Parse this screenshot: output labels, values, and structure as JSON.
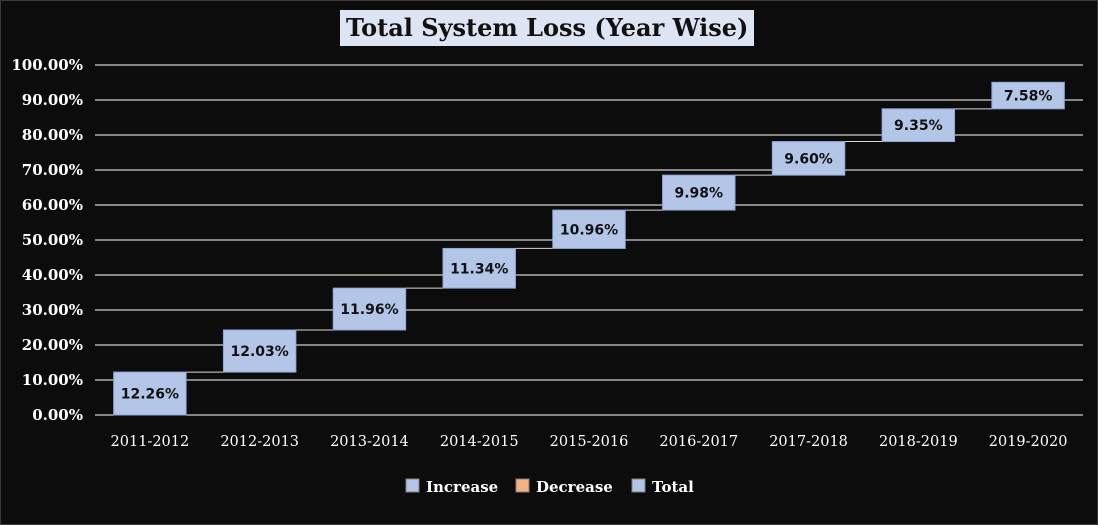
{
  "chart_data": {
    "type": "bar",
    "subtype": "waterfall",
    "title": "Total System Loss (Year Wise)",
    "categories": [
      "2011-2012",
      "2012-2013",
      "2013-2014",
      "2014-2015",
      "2015-2016",
      "2016-2017",
      "2017-2018",
      "2018-2019",
      "2019-2020"
    ],
    "values": [
      12.26,
      12.03,
      11.96,
      11.34,
      10.96,
      9.98,
      9.6,
      9.35,
      7.58
    ],
    "data_labels": [
      "12.26%",
      "12.03%",
      "11.96%",
      "11.34%",
      "10.96%",
      "9.98%",
      "9.60%",
      "9.35%",
      "7.58%"
    ],
    "yticks": [
      "0.00%",
      "10.00%",
      "20.00%",
      "30.00%",
      "40.00%",
      "50.00%",
      "60.00%",
      "70.00%",
      "80.00%",
      "90.00%",
      "100.00%"
    ],
    "ylim": [
      0,
      100
    ],
    "grid": true,
    "legend_position": "bottom",
    "legend": [
      {
        "name": "Increase",
        "color": "#b4c6e7"
      },
      {
        "name": "Decrease",
        "color": "#f4b183"
      },
      {
        "name": "Total",
        "color": "#b4c6e7"
      }
    ],
    "colors": {
      "background": "#0c0c0c",
      "bar": "#b4c6e7",
      "bar_edge": "#8fa8d4",
      "grid": "#ffffff",
      "text": "#ffffff"
    }
  }
}
